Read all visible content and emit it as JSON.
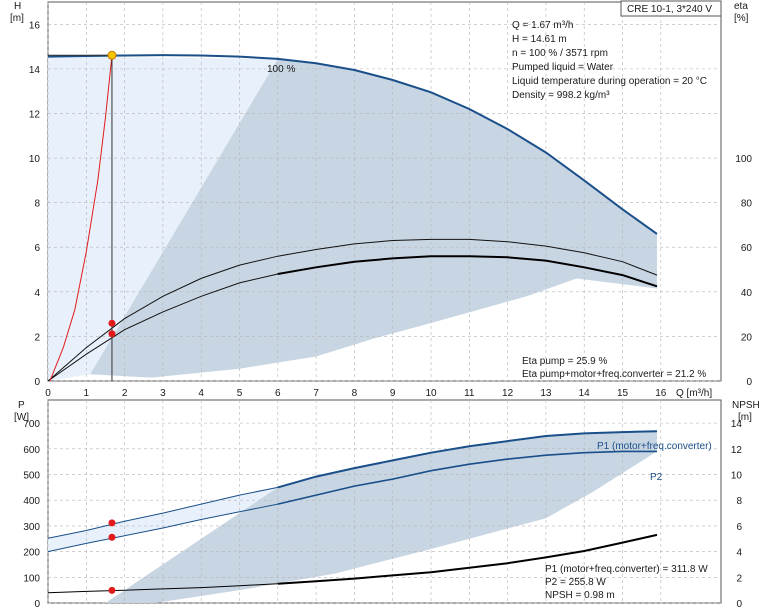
{
  "header_tag": "CRE 10-1, 3*240 V",
  "top_chart": {
    "y_left_label": "H",
    "y_left_unit": "[m]",
    "y_right_label": "eta",
    "y_right_unit": "[%]",
    "x_label": "Q [m³/h]",
    "curve_label": "100 %",
    "info_lines": [
      "Q = 1.67 m³/h",
      "H = 14.61 m",
      "n = 100 % / 3571 rpm",
      "Pumped liquid = Water",
      "Liquid temperature during operation = 20 °C",
      "Density = 998.2 kg/m³"
    ],
    "eta_lines": [
      "Eta pump = 25.9 %",
      "Eta pump+motor+freq.converter = 21.2 %"
    ]
  },
  "bottom_chart": {
    "y_left_label": "P",
    "y_left_unit": "[W]",
    "y_right_label": "NPSH",
    "y_right_unit": "[m]",
    "p1_label": "P1 (motor+freq.converter)",
    "p2_label": "P2",
    "info_lines": [
      "P1 (motor+freq.converter) = 311.8 W",
      "P2 = 255.8 W",
      "NPSH = 0.98 m"
    ]
  },
  "colors": {
    "curve_blue": "#1a4f8a",
    "shade": "#c8d6e3",
    "shade_light": "#e8f1fb",
    "grid": "#b4b4b4",
    "operating_point": "#e11b1b",
    "duty_point": "#f5c400"
  },
  "chart_data": [
    {
      "type": "line",
      "title": "",
      "xlabel": "Q [m³/h]",
      "ylabel": "H [m]",
      "y2label": "eta [%]",
      "xlim": [
        0,
        16
      ],
      "ylim": [
        0,
        17
      ],
      "y2lim": [
        0,
        170
      ],
      "x_ticks": [
        0,
        1,
        2,
        3,
        4,
        5,
        6,
        7,
        8,
        9,
        10,
        11,
        12,
        13,
        14,
        15,
        16
      ],
      "y_ticks": [
        0,
        2,
        4,
        6,
        8,
        10,
        12,
        14,
        16
      ],
      "y2_ticks": [
        0,
        20,
        40,
        60,
        80,
        100
      ],
      "grid": true,
      "series": [
        {
          "name": "100 %",
          "axis": "left",
          "x": [
            0,
            1,
            2,
            3,
            4,
            5,
            6,
            7,
            8,
            9,
            10,
            11,
            12,
            13,
            14,
            15,
            15.9
          ],
          "y": [
            14.55,
            14.58,
            14.6,
            14.62,
            14.6,
            14.55,
            14.45,
            14.25,
            13.95,
            13.5,
            12.95,
            12.2,
            11.3,
            10.25,
            9.0,
            7.7,
            6.6
          ]
        },
        {
          "name": "Eta pump",
          "axis": "right",
          "x": [
            0,
            1,
            2,
            3,
            4,
            5,
            6,
            7,
            8,
            9,
            10,
            11,
            12,
            13,
            14,
            15,
            15.9
          ],
          "y": [
            0,
            15,
            28,
            38,
            46,
            52,
            56,
            59,
            61.5,
            63,
            63.5,
            63.5,
            62.5,
            60.5,
            57.5,
            53.5,
            47.5
          ]
        },
        {
          "name": "Eta pump+motor+freq.converter",
          "axis": "right",
          "x": [
            0,
            1,
            2,
            3,
            4,
            5,
            6,
            7,
            8,
            9,
            10,
            11,
            12,
            13,
            14,
            15,
            15.9
          ],
          "y": [
            0,
            12,
            23,
            31,
            38,
            44,
            48,
            51,
            53.5,
            55,
            56,
            56,
            55.5,
            54,
            51,
            47.5,
            42.5
          ]
        },
        {
          "name": "",
          "axis": "left",
          "x": [
            0.05,
            0.4,
            0.7,
            1.0,
            1.3,
            1.5,
            1.67
          ],
          "y": [
            0,
            1.5,
            3.2,
            5.8,
            9.0,
            11.8,
            14.61
          ]
        }
      ],
      "points": [
        {
          "x": 1.67,
          "y": 14.61,
          "axis": "left",
          "kind": "duty"
        },
        {
          "x": 1.67,
          "y": 25.9,
          "axis": "right",
          "kind": "operating"
        },
        {
          "x": 1.67,
          "y": 21.2,
          "axis": "right",
          "kind": "operating"
        }
      ]
    },
    {
      "type": "line",
      "title": "",
      "xlabel": "",
      "ylabel": "P [W]",
      "y2label": "NPSH [m]",
      "xlim": [
        0,
        16
      ],
      "ylim": [
        0,
        790
      ],
      "y2lim": [
        0,
        15.8
      ],
      "y_ticks": [
        0,
        100,
        200,
        300,
        400,
        500,
        600,
        700
      ],
      "y2_ticks": [
        0,
        2,
        4,
        6,
        8,
        10,
        12,
        14
      ],
      "grid": true,
      "series": [
        {
          "name": "P1 (motor+freq.converter)",
          "axis": "left",
          "x": [
            0,
            1,
            2,
            3,
            4,
            5,
            6,
            7,
            8,
            9,
            10,
            11,
            12,
            13,
            14,
            15,
            15.9
          ],
          "y": [
            252,
            282,
            318,
            350,
            385,
            420,
            450,
            492,
            525,
            555,
            585,
            610,
            630,
            650,
            660,
            665,
            668
          ]
        },
        {
          "name": "P2",
          "axis": "left",
          "x": [
            0,
            1,
            2,
            3,
            4,
            5,
            6,
            7,
            8,
            9,
            10,
            11,
            12,
            13,
            14,
            15,
            15.9
          ],
          "y": [
            200,
            232,
            262,
            292,
            325,
            355,
            385,
            420,
            455,
            482,
            515,
            540,
            560,
            575,
            585,
            590,
            590
          ]
        },
        {
          "name": "NPSH",
          "axis": "right",
          "x": [
            0,
            1,
            2,
            3,
            4,
            5,
            6,
            7,
            8,
            9,
            10,
            11,
            12,
            13,
            14,
            15,
            15.9
          ],
          "y": [
            0.8,
            0.9,
            1.0,
            1.1,
            1.2,
            1.35,
            1.5,
            1.7,
            1.9,
            2.15,
            2.4,
            2.75,
            3.1,
            3.55,
            4.05,
            4.7,
            5.3
          ]
        }
      ],
      "points": [
        {
          "x": 1.67,
          "y": 311.8,
          "axis": "left",
          "kind": "operating"
        },
        {
          "x": 1.67,
          "y": 255.8,
          "axis": "left",
          "kind": "operating"
        },
        {
          "x": 1.67,
          "y": 0.98,
          "axis": "right",
          "kind": "operating"
        }
      ]
    }
  ]
}
